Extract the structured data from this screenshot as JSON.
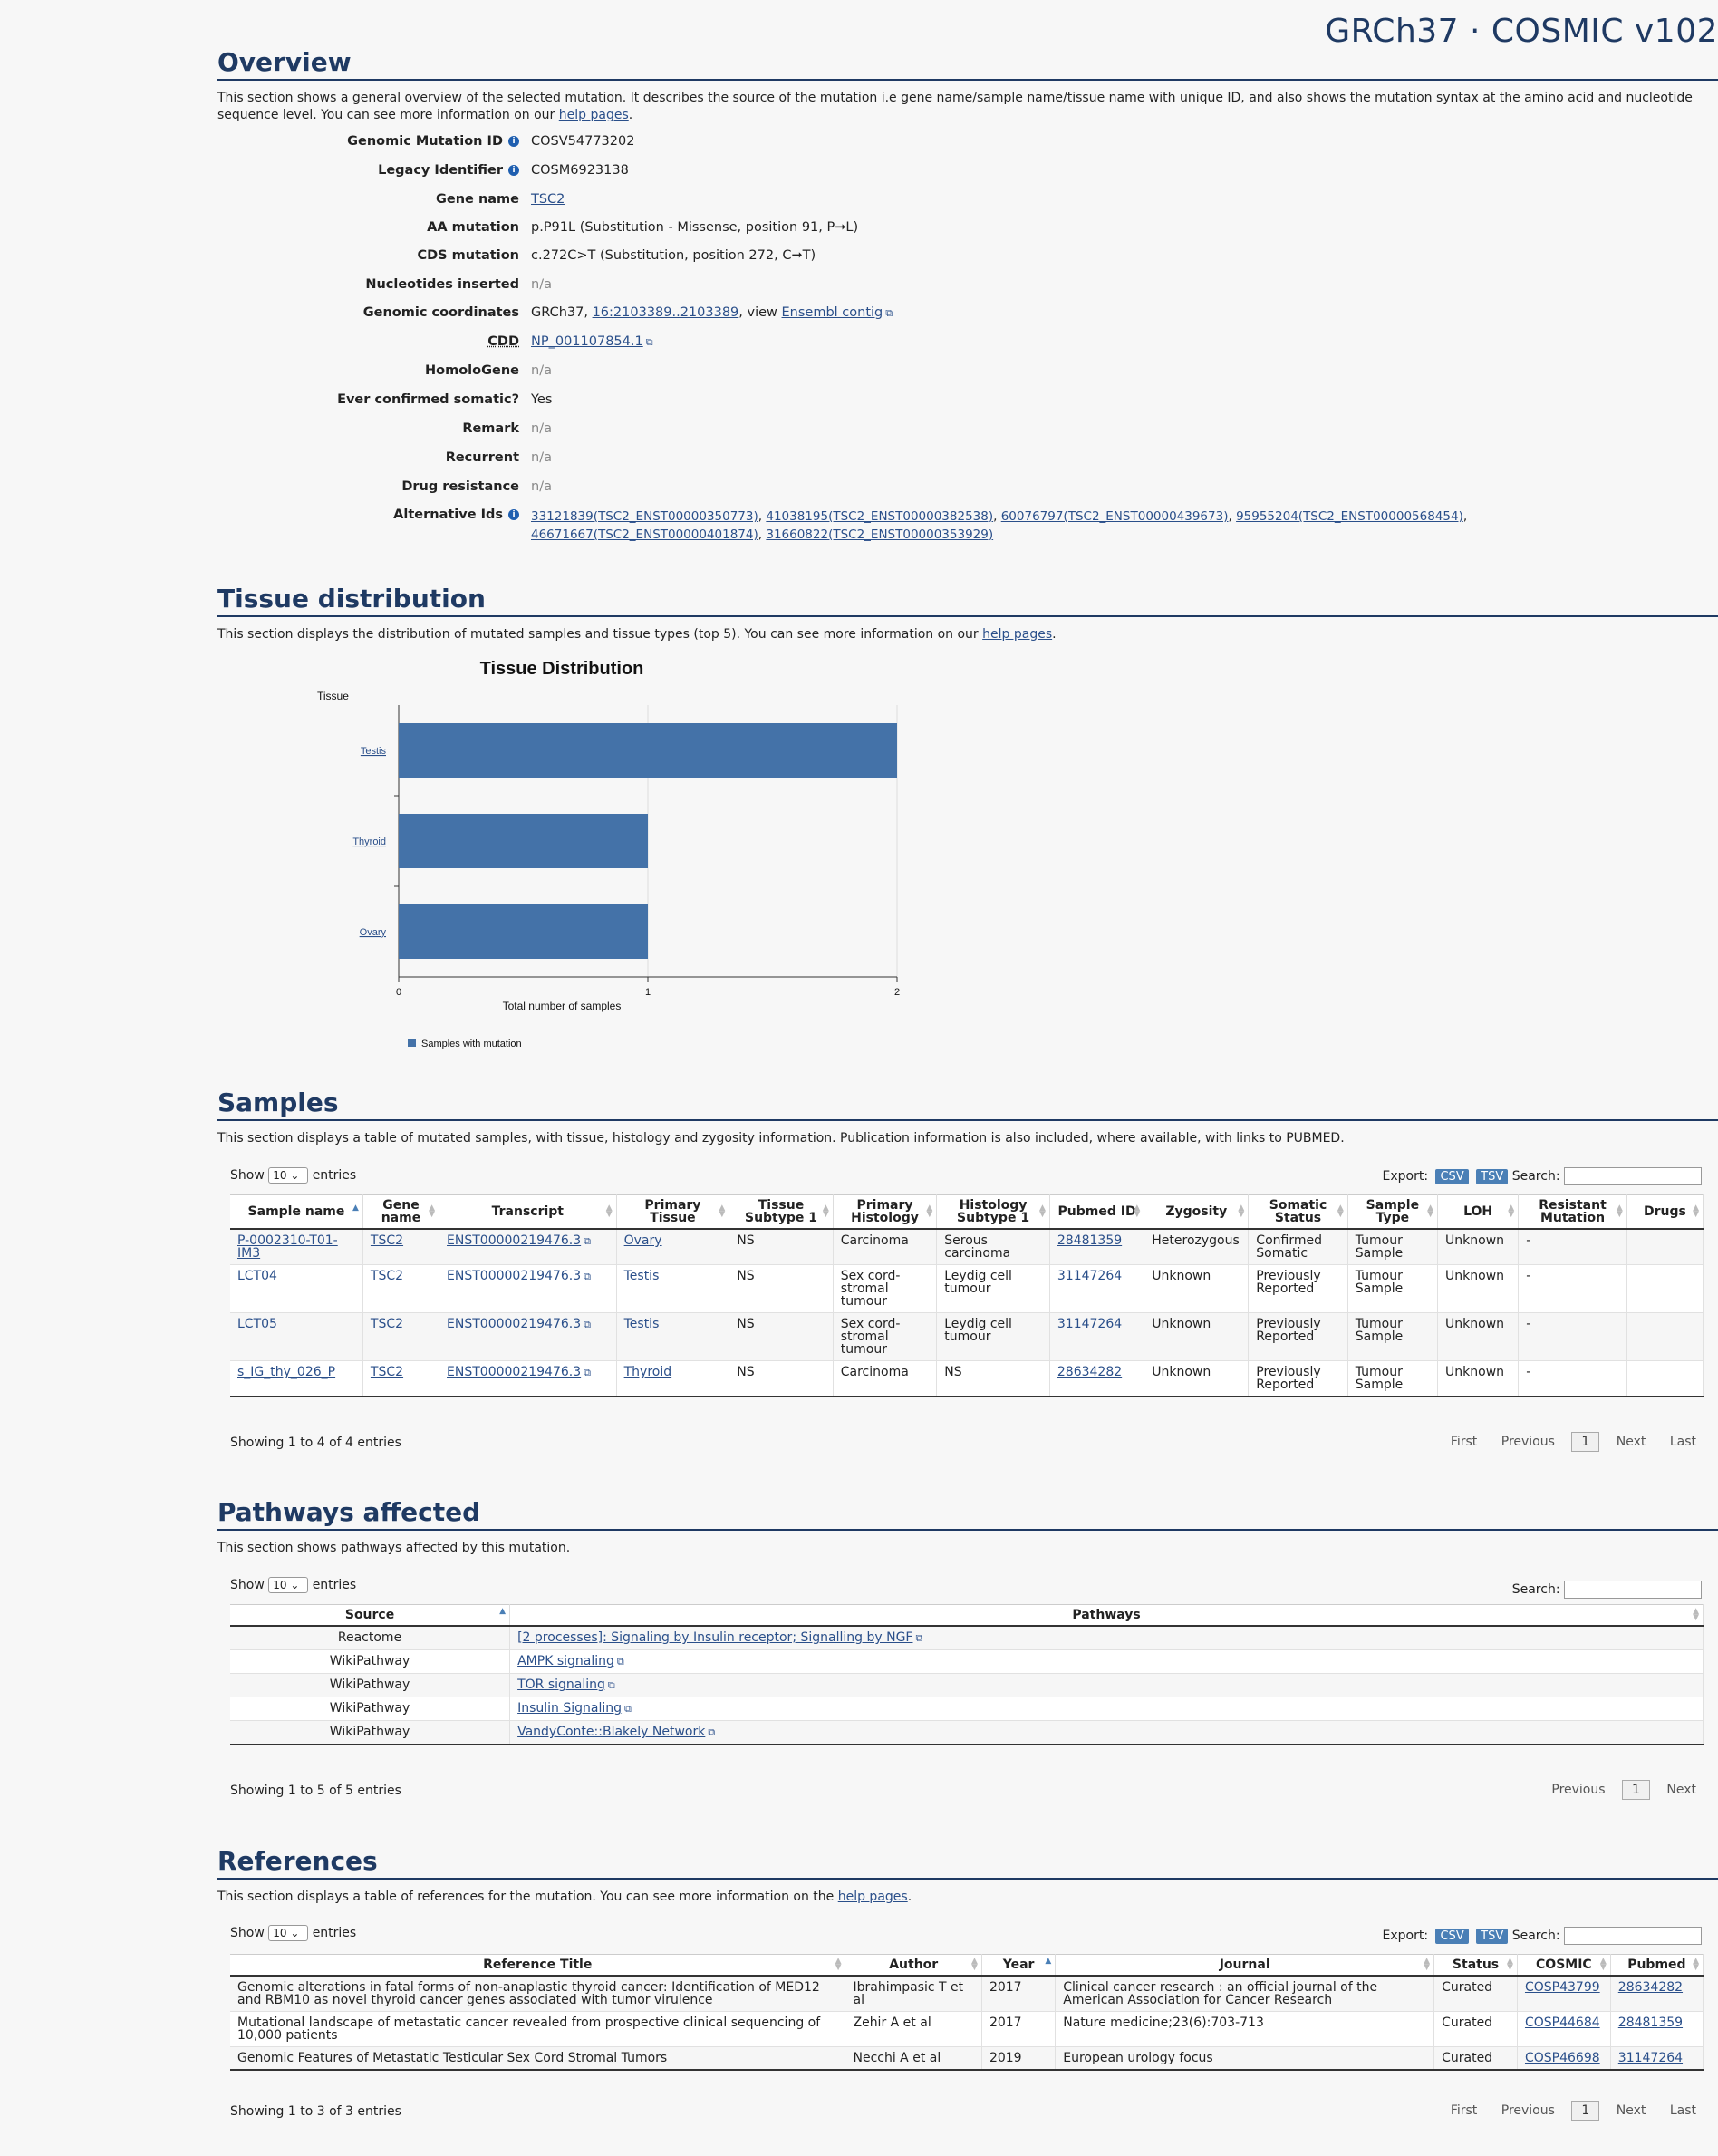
{
  "brand": "GRCh37 · COSMIC v102",
  "overview": {
    "title": "Overview",
    "desc_pre": "This section shows a general overview of the selected mutation. It describes the source of the mutation i.e gene name/sample name/tissue name with unique ID, and also shows the mutation syntax at the amino acid and nucleotide sequence level. You can see more information on our ",
    "desc_link": "help pages",
    "rows": {
      "genomic_mutation_id": {
        "key": "Genomic Mutation ID",
        "value": "COSV54773202"
      },
      "legacy_identifier": {
        "key": "Legacy Identifier",
        "value": "COSM6923138"
      },
      "gene_name": {
        "key": "Gene name",
        "value": "TSC2"
      },
      "aa_mutation": {
        "key": "AA mutation",
        "value": "p.P91L (Substitution - Missense, position 91, P➞L)"
      },
      "cds_mutation": {
        "key": "CDS mutation",
        "value": "c.272C>T (Substitution, position 272, C➞T)"
      },
      "nucleotides_inserted": {
        "key": "Nucleotides inserted",
        "value": "n/a"
      },
      "genomic_coordinates": {
        "key": "Genomic coordinates",
        "prefix": "GRCh37, ",
        "coord": "16:2103389..2103389",
        "mid": ", view ",
        "link": "Ensembl contig"
      },
      "cdd": {
        "key": "CDD",
        "value": "NP_001107854.1"
      },
      "homologene": {
        "key": "HomoloGene",
        "value": "n/a"
      },
      "ever_confirmed": {
        "key": "Ever confirmed somatic?",
        "value": "Yes"
      },
      "remark": {
        "key": "Remark",
        "value": "n/a"
      },
      "recurrent": {
        "key": "Recurrent",
        "value": "n/a"
      },
      "drug_resistance": {
        "key": "Drug resistance",
        "value": "n/a"
      },
      "alternative_ids": {
        "key": "Alternative Ids",
        "ids": [
          "33121839(TSC2_ENST00000350773)",
          "41038195(TSC2_ENST00000382538)",
          "60076797(TSC2_ENST00000439673)",
          "95955204(TSC2_ENST00000568454)",
          "46671667(TSC2_ENST00000401874)",
          "31660822(TSC2_ENST00000353929)"
        ]
      }
    }
  },
  "tissue": {
    "title": "Tissue distribution",
    "desc_pre": "This section displays the distribution of mutated samples and tissue types (top 5). You can see more information on our ",
    "desc_link": "help pages"
  },
  "chart_data": {
    "type": "bar",
    "orientation": "horizontal",
    "title": "Tissue Distribution",
    "ylabel": "Tissue",
    "xlabel": "Total number of samples",
    "categories": [
      "Testis",
      "Thyroid",
      "Ovary"
    ],
    "series": [
      {
        "name": "Samples with mutation",
        "values": [
          2,
          1,
          1
        ],
        "color": "#4472a8"
      }
    ],
    "xlim": [
      0,
      2
    ],
    "xticks": [
      0,
      1,
      2
    ],
    "grid": true,
    "legend": "bottom-left"
  },
  "samples": {
    "title": "Samples",
    "desc": "This section displays a table of mutated samples, with tissue, histology and zygosity information. Publication information is also included, where available, with links to PUBMED.",
    "show": "Show",
    "show_value": "10",
    "entries": "entries",
    "export": "Export:",
    "csv": "CSV",
    "tsv": "TSV",
    "search": "Search:",
    "headers": [
      "Sample name",
      "Gene name",
      "Transcript",
      "Primary Tissue",
      "Tissue Subtype 1",
      "Primary Histology",
      "Histology Subtype 1",
      "Pubmed ID",
      "Zygosity",
      "Somatic Status",
      "Sample Type",
      "LOH",
      "Resistant Mutation",
      "Drugs"
    ],
    "rows": [
      [
        "P-0002310-T01-IM3",
        "TSC2",
        "ENST00000219476.3",
        "Ovary",
        "NS",
        "Carcinoma",
        "Serous carcinoma",
        "28481359",
        "Heterozygous",
        "Confirmed Somatic",
        "Tumour Sample",
        "Unknown",
        "-",
        ""
      ],
      [
        "LCT04",
        "TSC2",
        "ENST00000219476.3",
        "Testis",
        "NS",
        "Sex cord-stromal tumour",
        "Leydig cell tumour",
        "31147264",
        "Unknown",
        "Previously Reported",
        "Tumour Sample",
        "Unknown",
        "-",
        ""
      ],
      [
        "LCT05",
        "TSC2",
        "ENST00000219476.3",
        "Testis",
        "NS",
        "Sex cord-stromal tumour",
        "Leydig cell tumour",
        "31147264",
        "Unknown",
        "Previously Reported",
        "Tumour Sample",
        "Unknown",
        "-",
        ""
      ],
      [
        "s_IG_thy_026_P",
        "TSC2",
        "ENST00000219476.3",
        "Thyroid",
        "NS",
        "Carcinoma",
        "NS",
        "28634282",
        "Unknown",
        "Previously Reported",
        "Tumour Sample",
        "Unknown",
        "-",
        ""
      ]
    ],
    "info": "Showing 1 to 4 of 4 entries",
    "pager": {
      "first": "First",
      "previous": "Previous",
      "page": "1",
      "next": "Next",
      "last": "Last"
    }
  },
  "pathways": {
    "title": "Pathways affected",
    "desc": "This section shows pathways affected by this mutation.",
    "show": "Show",
    "show_value": "10",
    "entries": "entries",
    "search": "Search:",
    "headers": [
      "Source",
      "Pathways"
    ],
    "rows": [
      [
        "Reactome",
        "[2 processes]: Signaling by Insulin receptor; Signalling by NGF"
      ],
      [
        "WikiPathway",
        "AMPK signaling"
      ],
      [
        "WikiPathway",
        "TOR signaling"
      ],
      [
        "WikiPathway",
        "Insulin Signaling"
      ],
      [
        "WikiPathway",
        "VandyConte::Blakely Network"
      ]
    ],
    "info": "Showing 1 to 5 of 5 entries",
    "pager": {
      "previous": "Previous",
      "page": "1",
      "next": "Next"
    }
  },
  "references": {
    "title": "References",
    "desc_pre": "This section displays a table of references for the mutation. You can see more information on the ",
    "desc_link": "help pages",
    "show": "Show",
    "show_value": "10",
    "entries": "entries",
    "export": "Export:",
    "csv": "CSV",
    "tsv": "TSV",
    "search": "Search:",
    "headers": [
      "Reference Title",
      "Author",
      "Year",
      "Journal",
      "Status",
      "COSMIC",
      "Pubmed"
    ],
    "rows": [
      [
        "Genomic alterations in fatal forms of non-anaplastic thyroid cancer: Identification of MED12 and RBM10 as novel thyroid cancer genes associated with tumor virulence",
        "Ibrahimpasic T et al",
        "2017",
        "Clinical cancer research : an official journal of the American Association for Cancer Research",
        "Curated",
        "COSP43799",
        "28634282"
      ],
      [
        "Mutational landscape of metastatic cancer revealed from prospective clinical sequencing of 10,000 patients",
        "Zehir A et al",
        "2017",
        "Nature medicine;23(6):703-713",
        "Curated",
        "COSP44684",
        "28481359"
      ],
      [
        "Genomic Features of Metastatic Testicular Sex Cord Stromal Tumors",
        "Necchi A et al",
        "2019",
        "European urology focus",
        "Curated",
        "COSP46698",
        "31147264"
      ]
    ],
    "info": "Showing 1 to 3 of 3 entries",
    "pager": {
      "first": "First",
      "previous": "Previous",
      "page": "1",
      "next": "Next",
      "last": "Last"
    }
  }
}
